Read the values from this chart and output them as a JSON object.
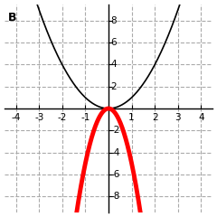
{
  "title": "B",
  "xlim": [
    -4.5,
    4.5
  ],
  "ylim": [
    -9.5,
    9.5
  ],
  "xticks": [
    -4,
    -3,
    -2,
    -1,
    1,
    2,
    3,
    4
  ],
  "yticks": [
    -8,
    -6,
    -4,
    -2,
    2,
    4,
    6,
    8
  ],
  "parabola1_color": "black",
  "parabola1_lw": 1.2,
  "parabola1_coeff": 1,
  "parabola2_color": "red",
  "parabola2_lw": 3.5,
  "parabola2_coeff": -5,
  "background_color": "#ffffff",
  "grid_color": "#aaaaaa",
  "grid_style": "--",
  "grid_lw": 0.8,
  "axis_color": "black",
  "label_fontsize": 7.5,
  "title_fontsize": 9
}
